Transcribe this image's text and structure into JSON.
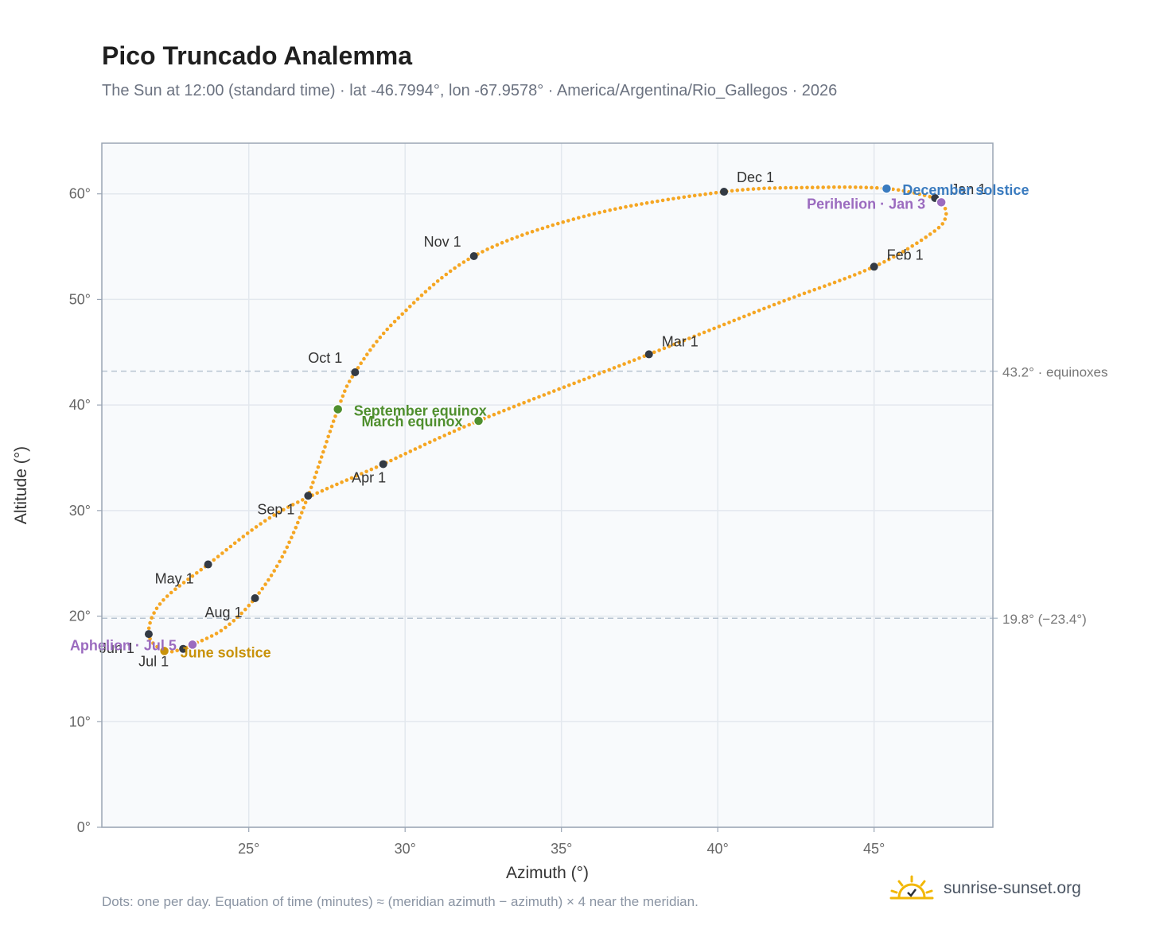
{
  "title": "Pico Truncado Analemma",
  "subtitle": "The Sun at 12:00 (standard time) · lat -46.7994°, lon -67.9578° · America/Argentina/Rio_Gallegos · 2026",
  "footnote": "Dots: one per day. Equation of time (minutes) ≈ (meridian azimuth − azimuth) × 4 near the meridian.",
  "brand": {
    "name": "sunrise-sunset.org",
    "icon": "sun-icon"
  },
  "colors": {
    "curve": "#f5a623",
    "month_dot": "#333a44",
    "solstice_dec": "#3a7bbf",
    "solstice_jun": "#c8920a",
    "equinox": "#4f8f2e",
    "apsis": "#9b6bbf",
    "grid": "#e3e8ee",
    "ref_line": "#b7c4d1",
    "plot_bg": "#f8fafc",
    "frame": "#9aa5b4"
  },
  "chart_data": {
    "type": "scatter",
    "xlabel": "Azimuth (°)",
    "ylabel": "Altitude (°)",
    "xlim": [
      20.3,
      48.8
    ],
    "ylim": [
      0,
      64.8
    ],
    "x_ticks": [
      25,
      30,
      35,
      40,
      45
    ],
    "y_ticks": [
      0,
      10,
      20,
      30,
      40,
      50,
      60
    ],
    "x_tick_labels": [
      "25°",
      "30°",
      "35°",
      "40°",
      "45°"
    ],
    "y_tick_labels": [
      "0°",
      "10°",
      "20°",
      "30°",
      "40°",
      "50°",
      "60°"
    ],
    "grid": true,
    "legend": "none",
    "reference_lines": [
      {
        "y": 43.2,
        "label": "43.2° · equinoxes"
      },
      {
        "y": 19.8,
        "label": "19.8° (−23.4°)"
      }
    ],
    "month_markers": [
      {
        "label": "Jan 1",
        "az": 46.95,
        "alt": 59.6
      },
      {
        "label": "Feb 1",
        "az": 45.0,
        "alt": 53.1
      },
      {
        "label": "Mar 1",
        "az": 37.8,
        "alt": 44.8
      },
      {
        "label": "Apr 1",
        "az": 29.3,
        "alt": 34.4
      },
      {
        "label": "May 1",
        "az": 23.7,
        "alt": 24.9
      },
      {
        "label": "Jun 1",
        "az": 21.8,
        "alt": 18.3
      },
      {
        "label": "Jul 1",
        "az": 22.9,
        "alt": 16.9
      },
      {
        "label": "Aug 1",
        "az": 25.2,
        "alt": 21.7
      },
      {
        "label": "Sep 1",
        "az": 26.9,
        "alt": 31.4
      },
      {
        "label": "Oct 1",
        "az": 28.4,
        "alt": 43.1
      },
      {
        "label": "Nov 1",
        "az": 32.2,
        "alt": 54.1
      },
      {
        "label": "Dec 1",
        "az": 40.2,
        "alt": 60.2
      }
    ],
    "events": [
      {
        "label": "December solstice",
        "az": 45.4,
        "alt": 60.5,
        "color": "#3a7bbf"
      },
      {
        "label": "Perihelion · Jan 3",
        "az": 47.15,
        "alt": 59.2,
        "color": "#9b6bbf"
      },
      {
        "label": "September equinox",
        "az": 27.85,
        "alt": 39.6,
        "color": "#4f8f2e"
      },
      {
        "label": "March equinox",
        "az": 32.35,
        "alt": 38.5,
        "color": "#4f8f2e"
      },
      {
        "label": "June solstice",
        "az": 22.3,
        "alt": 16.7,
        "color": "#c8920a"
      },
      {
        "label": "Aphelion · Jul 5",
        "az": 23.2,
        "alt": 17.3,
        "color": "#9b6bbf"
      }
    ],
    "curve_anchors": [
      [
        46.95,
        59.6
      ],
      [
        47.15,
        59.2
      ],
      [
        47.3,
        58.0
      ],
      [
        46.9,
        56.4
      ],
      [
        45.0,
        53.1
      ],
      [
        41.8,
        49.5
      ],
      [
        37.8,
        44.8
      ],
      [
        32.35,
        38.5
      ],
      [
        29.3,
        34.4
      ],
      [
        26.0,
        29.9
      ],
      [
        23.7,
        24.9
      ],
      [
        22.2,
        21.3
      ],
      [
        21.8,
        18.3
      ],
      [
        22.3,
        16.7
      ],
      [
        22.9,
        16.9
      ],
      [
        23.2,
        17.3
      ],
      [
        24.2,
        18.8
      ],
      [
        25.2,
        21.7
      ],
      [
        26.1,
        25.8
      ],
      [
        26.9,
        31.4
      ],
      [
        27.85,
        39.6
      ],
      [
        28.4,
        43.1
      ],
      [
        29.7,
        48.0
      ],
      [
        32.2,
        54.1
      ],
      [
        35.9,
        58.0
      ],
      [
        40.2,
        60.2
      ],
      [
        43.0,
        60.6
      ],
      [
        45.4,
        60.5
      ],
      [
        46.95,
        59.6
      ]
    ]
  }
}
